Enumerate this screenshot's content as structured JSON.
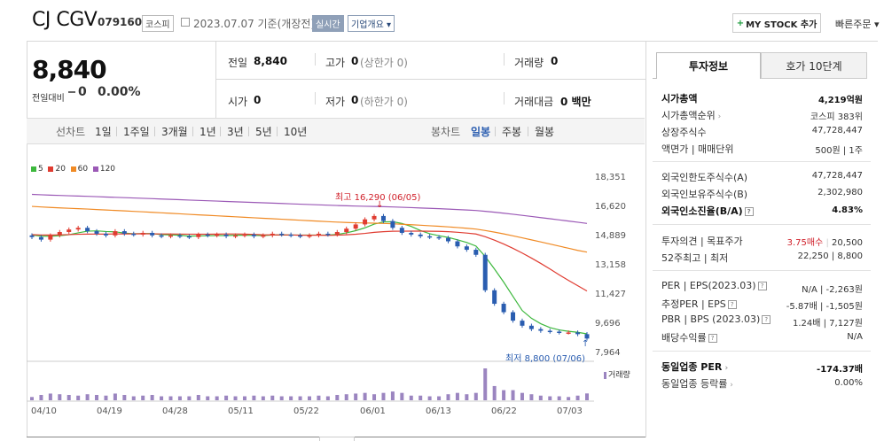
{
  "header": {
    "company": "CJ CGV",
    "code": "079160",
    "market": "코스피",
    "date_text": "2023.07.07 기준(개장전)",
    "realtime_badge": "실시간",
    "company_info_label": "기업개요",
    "mystock_label": "MY STOCK 추가",
    "quick_order_label": "빠른주문"
  },
  "price": {
    "current": "8,840",
    "change_label": "전일대비",
    "change_value": "0",
    "change_pct": "0.00%"
  },
  "summary": {
    "prev_close_label": "전일",
    "prev_close": "8,840",
    "high_label": "고가",
    "high": "0",
    "high_sub": "(상한가 0)",
    "volume_label": "거래량",
    "volume": "0",
    "open_label": "시가",
    "open": "0",
    "low_label": "저가",
    "low": "0",
    "low_sub": "(하한가 0)",
    "turnover_label": "거래대금",
    "turnover": "0 백만"
  },
  "toolbar": {
    "line_label": "선차트",
    "line_periods": [
      "1일",
      "1주일",
      "3개월",
      "1년",
      "3년",
      "5년",
      "10년"
    ],
    "candle_label": "봉차트",
    "candle_periods": [
      "일봉",
      "주봉",
      "월봉"
    ],
    "candle_active": "일봉"
  },
  "side_tabs": {
    "active": "투자정보",
    "other": "호가 10단계"
  },
  "invest_info": {
    "market_cap_label": "시가총액",
    "market_cap": "4,219억원",
    "cap_rank_label": "시가총액순위",
    "cap_rank": "코스피 383위",
    "shares_label": "상장주식수",
    "shares": "47,728,447",
    "par_label": "액면가 | 매매단위",
    "par": "500원 | 1주",
    "foreign_limit_label": "외국인한도주식수(A)",
    "foreign_limit": "47,728,447",
    "foreign_hold_label": "외국인보유주식수(B)",
    "foreign_hold": "2,302,980",
    "foreign_ratio_label": "외국인소진율(B/A)",
    "foreign_ratio": "4.83%",
    "opinion_label": "투자의견 | 목표주가",
    "opinion": "3.75매수",
    "target": "20,500",
    "range52_label": "52주최고 | 최저",
    "range52": "22,250 | 8,800",
    "per_label": "PER | EPS(2023.03)",
    "per": "N/A | -2,263원",
    "est_per_label": "추정PER | EPS",
    "est_per": "-5.87배 | -1,505원",
    "pbr_label": "PBR | BPS (2023.03)",
    "pbr": "1.24배 | 7,127원",
    "div_label": "배당수익률",
    "div": "N/A",
    "sector_per_label": "동일업종 PER",
    "sector_per": "-174.37배",
    "sector_rate_label": "동일업종 등락률",
    "sector_rate": "0.00%"
  },
  "chart_data": {
    "type": "candlestick",
    "legend": [
      {
        "name": "5",
        "color": "#3db83d"
      },
      {
        "name": "20",
        "color": "#e03c31"
      },
      {
        "name": "60",
        "color": "#f08a24"
      },
      {
        "name": "120",
        "color": "#9b59b6"
      }
    ],
    "yticks": [
      "18,351",
      "16,620",
      "14,889",
      "13,158",
      "11,427",
      "9,696",
      "7,964"
    ],
    "ylim": [
      7964,
      18351
    ],
    "xticks": [
      "04/10",
      "04/19",
      "04/28",
      "05/11",
      "05/22",
      "06/01",
      "06/13",
      "06/22",
      "07/03"
    ],
    "volume_label": "거래량",
    "high_annotation": "최고 16,290 (06/05)",
    "low_annotation": "최저 8,800 (07/06)",
    "closes": [
      14850,
      14700,
      14950,
      15150,
      15300,
      15400,
      15200,
      15050,
      14950,
      15200,
      15050,
      15000,
      15100,
      14950,
      14900,
      14950,
      14900,
      14850,
      15000,
      14950,
      15000,
      14900,
      14950,
      15000,
      14900,
      14950,
      15050,
      15000,
      14950,
      14900,
      14950,
      15050,
      15000,
      15150,
      15350,
      15600,
      15900,
      16100,
      15800,
      15400,
      15100,
      15000,
      14900,
      14850,
      14800,
      14600,
      14300,
      14100,
      13800,
      11700,
      10900,
      10400,
      9900,
      9600,
      9400,
      9300,
      9250,
      9200,
      9200,
      9100,
      8840
    ]
  }
}
